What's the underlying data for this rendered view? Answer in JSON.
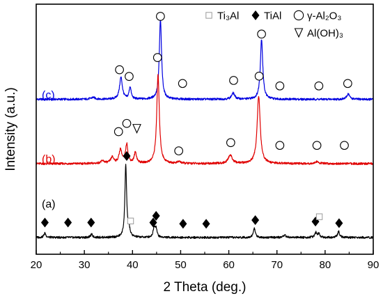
{
  "chart_data": {
    "type": "line",
    "xlabel": "2 Theta (deg.)",
    "ylabel": "Intensity (a.u.)",
    "xlim": [
      20,
      90
    ],
    "xticks": [
      "20",
      "30",
      "40",
      "50",
      "60",
      "70",
      "80",
      "90"
    ],
    "y_ticks_shown": false,
    "legend": {
      "placement": "top-right",
      "entries": [
        {
          "symbol": "square",
          "label": "Ti₃Al"
        },
        {
          "symbol": "diamond",
          "label": "TiAl"
        },
        {
          "symbol": "circle",
          "label": "γ-Al₂O₃"
        },
        {
          "symbol": "triangle-down",
          "label": "Al(OH)₃"
        }
      ]
    },
    "series": [
      {
        "name": "(c)",
        "color": "#0000e0",
        "baseline": 0.88,
        "peaks": [
          {
            "x": 37.6,
            "h": 0.72,
            "w": 0.35
          },
          {
            "x": 39.5,
            "h": 0.4,
            "w": 0.25
          },
          {
            "x": 45.8,
            "h": 2.62,
            "w": 0.28
          },
          {
            "x": 60.9,
            "h": 0.2,
            "w": 0.4
          },
          {
            "x": 66.8,
            "h": 1.98,
            "w": 0.3
          },
          {
            "x": 84.8,
            "h": 0.18,
            "w": 0.35
          },
          {
            "x": 31.8,
            "h": 0.06,
            "w": 0.5
          }
        ],
        "markers": [
          {
            "symbol": "circle",
            "x": 45.8,
            "y": 3.6
          },
          {
            "symbol": "circle",
            "x": 66.8,
            "y": 3.02
          },
          {
            "symbol": "circle",
            "x": 37.3,
            "y": 1.85
          },
          {
            "symbol": "circle",
            "x": 39.3,
            "y": 1.63
          },
          {
            "symbol": "circle",
            "x": 50.4,
            "y": 1.4
          },
          {
            "symbol": "circle",
            "x": 61.0,
            "y": 1.5
          },
          {
            "symbol": "circle",
            "x": 70.6,
            "y": 1.32
          },
          {
            "symbol": "circle",
            "x": 78.7,
            "y": 1.32
          },
          {
            "symbol": "circle",
            "x": 84.7,
            "y": 1.4
          }
        ]
      },
      {
        "name": "(b)",
        "color": "#e00000",
        "baseline": -1.23,
        "peaks": [
          {
            "x": 35.8,
            "h": 0.2,
            "w": 0.4
          },
          {
            "x": 37.5,
            "h": 0.45,
            "w": 0.35
          },
          {
            "x": 38.8,
            "h": 0.62,
            "w": 0.3
          },
          {
            "x": 40.6,
            "h": 0.35,
            "w": 0.3
          },
          {
            "x": 45.3,
            "h": 2.92,
            "w": 0.32
          },
          {
            "x": 49.7,
            "h": 0.06,
            "w": 0.4
          },
          {
            "x": 60.3,
            "h": 0.28,
            "w": 0.5
          },
          {
            "x": 66.2,
            "h": 2.22,
            "w": 0.38
          },
          {
            "x": 33.8,
            "h": 0.08,
            "w": 0.5
          },
          {
            "x": 78.3,
            "h": 0.06,
            "w": 0.5
          }
        ],
        "markers": [
          {
            "symbol": "circle",
            "x": 45.2,
            "y": 2.25
          },
          {
            "symbol": "circle",
            "x": 66.3,
            "y": 1.64
          },
          {
            "symbol": "circle",
            "x": 37.1,
            "y": -0.18
          },
          {
            "symbol": "circle",
            "x": 38.8,
            "y": 0.09
          },
          {
            "symbol": "triangle-down",
            "x": 40.9,
            "y": -0.08
          },
          {
            "symbol": "circle",
            "x": 49.6,
            "y": -0.81
          },
          {
            "symbol": "circle",
            "x": 60.4,
            "y": -0.54
          },
          {
            "symbol": "circle",
            "x": 70.6,
            "y": -0.63
          },
          {
            "symbol": "circle",
            "x": 78.3,
            "y": -0.63
          },
          {
            "symbol": "circle",
            "x": 84.0,
            "y": -0.63
          }
        ]
      },
      {
        "name": "(a)",
        "color": "#000000",
        "baseline": -3.65,
        "peaks": [
          {
            "x": 21.8,
            "h": 0.14,
            "w": 0.25
          },
          {
            "x": 31.5,
            "h": 0.1,
            "w": 0.25
          },
          {
            "x": 38.6,
            "h": 2.38,
            "w": 0.22
          },
          {
            "x": 39.3,
            "h": 0.22,
            "w": 0.25
          },
          {
            "x": 44.5,
            "h": 0.32,
            "w": 0.25
          },
          {
            "x": 44.9,
            "h": 0.28,
            "w": 0.22
          },
          {
            "x": 65.3,
            "h": 0.3,
            "w": 0.25
          },
          {
            "x": 71.6,
            "h": 0.08,
            "w": 0.3
          },
          {
            "x": 78.1,
            "h": 0.16,
            "w": 0.25
          },
          {
            "x": 78.7,
            "h": 0.12,
            "w": 0.25
          },
          {
            "x": 82.8,
            "h": 0.2,
            "w": 0.25
          }
        ],
        "markers": [
          {
            "symbol": "diamond",
            "x": 38.8,
            "y": -0.98
          },
          {
            "symbol": "diamond",
            "x": 21.8,
            "y": -3.16
          },
          {
            "symbol": "diamond",
            "x": 26.6,
            "y": -3.16
          },
          {
            "symbol": "diamond",
            "x": 31.4,
            "y": -3.16
          },
          {
            "symbol": "square",
            "x": 39.6,
            "y": -3.11
          },
          {
            "symbol": "diamond",
            "x": 44.3,
            "y": -3.16
          },
          {
            "symbol": "diamond",
            "x": 44.9,
            "y": -2.94
          },
          {
            "symbol": "diamond",
            "x": 50.5,
            "y": -3.2
          },
          {
            "symbol": "diamond",
            "x": 55.3,
            "y": -3.2
          },
          {
            "symbol": "diamond",
            "x": 65.5,
            "y": -3.08
          },
          {
            "symbol": "diamond",
            "x": 78.0,
            "y": -3.13
          },
          {
            "symbol": "square",
            "x": 78.8,
            "y": -2.97
          },
          {
            "symbol": "diamond",
            "x": 82.9,
            "y": -3.18
          }
        ]
      }
    ]
  }
}
